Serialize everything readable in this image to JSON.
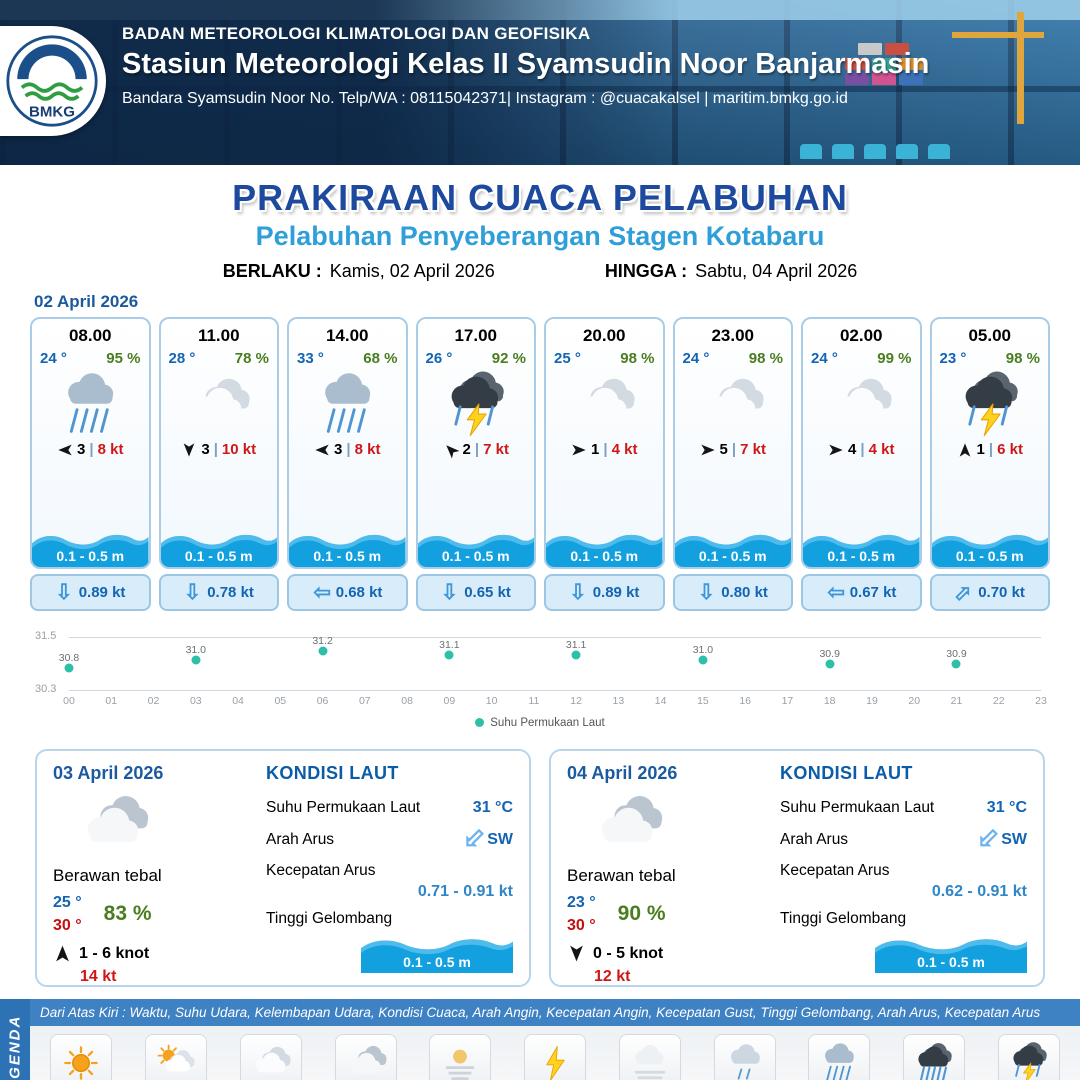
{
  "header": {
    "line1": "BADAN METEOROLOGI KLIMATOLOGI DAN GEOFISIKA",
    "line2": "Stasiun Meteorologi Kelas II Syamsudin Noor Banjarmasin",
    "line3": "Bandara Syamsudin Noor No. Telp/WA : 08115042371| Instagram : @cuacakalsel | maritim.bmkg.go.id",
    "logo_text": "BMKG"
  },
  "title": {
    "main": "PRAKIRAAN CUACA PELABUHAN",
    "sub": "Pelabuhan Penyeberangan Stagen Kotabaru",
    "berlaku_label": "BERLAKU :",
    "berlaku_value": "Kamis, 02 April 2026",
    "hingga_label": "HINGGA :",
    "hingga_value": "Sabtu, 04 April 2026"
  },
  "forecast_date": "02 April 2026",
  "cards": [
    {
      "time": "08.00",
      "temp": "24 °",
      "humidity": "95 %",
      "icon": "hujan-sedang",
      "wind_dir": "left",
      "wind_val": "3",
      "wind_speed": "8 kt",
      "wave": "0.1 - 0.5 m",
      "current_dir": "down",
      "current": "0.89 kt"
    },
    {
      "time": "11.00",
      "temp": "28 °",
      "humidity": "78 %",
      "icon": "berawan",
      "wind_dir": "down",
      "wind_val": "3",
      "wind_speed": "10 kt",
      "wave": "0.1 - 0.5 m",
      "current_dir": "down",
      "current": "0.78 kt"
    },
    {
      "time": "14.00",
      "temp": "33 °",
      "humidity": "68 %",
      "icon": "hujan-sedang",
      "wind_dir": "left",
      "wind_val": "3",
      "wind_speed": "8 kt",
      "wave": "0.1 - 0.5 m",
      "current_dir": "left",
      "current": "0.68 kt"
    },
    {
      "time": "17.00",
      "temp": "26 °",
      "humidity": "92 %",
      "icon": "hujan-petir",
      "wind_dir": "nw",
      "wind_val": "2",
      "wind_speed": "7 kt",
      "wave": "0.1 - 0.5 m",
      "current_dir": "down",
      "current": "0.65 kt"
    },
    {
      "time": "20.00",
      "temp": "25 °",
      "humidity": "98 %",
      "icon": "berawan",
      "wind_dir": "right",
      "wind_val": "1",
      "wind_speed": "4 kt",
      "wave": "0.1 - 0.5 m",
      "current_dir": "down",
      "current": "0.89 kt"
    },
    {
      "time": "23.00",
      "temp": "24 °",
      "humidity": "98 %",
      "icon": "berawan",
      "wind_dir": "right",
      "wind_val": "5",
      "wind_speed": "7 kt",
      "wave": "0.1 - 0.5 m",
      "current_dir": "down",
      "current": "0.80 kt"
    },
    {
      "time": "02.00",
      "temp": "24 °",
      "humidity": "99 %",
      "icon": "berawan",
      "wind_dir": "right",
      "wind_val": "4",
      "wind_speed": "4 kt",
      "wave": "0.1 - 0.5 m",
      "current_dir": "left",
      "current": "0.67 kt"
    },
    {
      "time": "05.00",
      "temp": "23 °",
      "humidity": "98 %",
      "icon": "hujan-petir",
      "wind_dir": "up",
      "wind_val": "1",
      "wind_speed": "6 kt",
      "wave": "0.1 - 0.5 m",
      "current_dir": "ne",
      "current": "0.70 kt"
    }
  ],
  "chart_data": {
    "type": "scatter",
    "x": [
      0,
      3,
      6,
      9,
      12,
      15,
      18,
      21
    ],
    "values": [
      30.8,
      31.0,
      31.2,
      31.1,
      31.1,
      31.0,
      30.9,
      30.9
    ],
    "ylim": [
      30.3,
      31.5
    ],
    "y_ticks": [
      "31.5",
      "30.3"
    ],
    "x_ticks": [
      "00",
      "01",
      "02",
      "03",
      "04",
      "05",
      "06",
      "07",
      "08",
      "09",
      "10",
      "11",
      "12",
      "13",
      "14",
      "15",
      "16",
      "17",
      "18",
      "19",
      "20",
      "21",
      "22",
      "23"
    ],
    "legend": "Suhu Permukaan Laut",
    "legend_position": "bottom",
    "dot_color": "#2cc0a8",
    "grid": "top-bottom-only"
  },
  "daily": [
    {
      "date": "03 April 2026",
      "icon": "berawan-tebal",
      "condition": "Berawan tebal",
      "temp_min": "25 °",
      "temp_max": "30 °",
      "humidity": "83 %",
      "wind_dir": "up",
      "wind_range": "1 - 6 knot",
      "gust": "14 kt",
      "sea": {
        "title": "KONDISI LAUT",
        "sst_label": "Suhu Permukaan Laut",
        "sst": "31 °C",
        "dir_label": "Arah Arus",
        "dir": "SW",
        "dir_code": "sw",
        "speed_label": "Kecepatan Arus",
        "speed": "0.71 - 0.91 kt",
        "wave_label": "Tinggi Gelombang",
        "wave": "0.1 - 0.5 m"
      }
    },
    {
      "date": "04 April 2026",
      "icon": "berawan-tebal",
      "condition": "Berawan tebal",
      "temp_min": "23 °",
      "temp_max": "30 °",
      "humidity": "90 %",
      "wind_dir": "down",
      "wind_range": "0 - 5 knot",
      "gust": "12 kt",
      "sea": {
        "title": "KONDISI LAUT",
        "sst_label": "Suhu Permukaan Laut",
        "sst": "31 °C",
        "dir_label": "Arah Arus",
        "dir": "SW",
        "dir_code": "sw",
        "speed_label": "Kecepatan Arus",
        "speed": "0.62 - 0.91 kt",
        "wave_label": "Tinggi Gelombang",
        "wave": "0.1 - 0.5 m"
      }
    }
  ],
  "legend": {
    "side_label": "LEGENDA",
    "strip_text": "Dari Atas Kiri : Waktu, Suhu Udara, Kelembapan Udara, Kondisi Cuaca, Arah Angin, Kecepatan Angin, Kecepatan Gust, Tinggi Gelombang, Arah Arus, Kecepatan Arus",
    "items": [
      {
        "label": "Cerah",
        "icon": "cerah"
      },
      {
        "label": "Cerah Berawan",
        "icon": "cerah-berawan"
      },
      {
        "label": "Berawan",
        "icon": "berawan"
      },
      {
        "label": "Berawan Tebal",
        "icon": "berawan-tebal"
      },
      {
        "label": "Udara Kabur",
        "icon": "udara-kabur"
      },
      {
        "label": "Petir",
        "icon": "petir"
      },
      {
        "label": "Kabut",
        "icon": "kabut"
      },
      {
        "label": "Hujan Ringan",
        "icon": "hujan-ringan"
      },
      {
        "label": "Hujan Sedang",
        "icon": "hujan-sedang"
      },
      {
        "label": "Hujan Lebat",
        "icon": "hujan-lebat"
      },
      {
        "label": "Hujan Petir",
        "icon": "hujan-petir"
      }
    ]
  }
}
